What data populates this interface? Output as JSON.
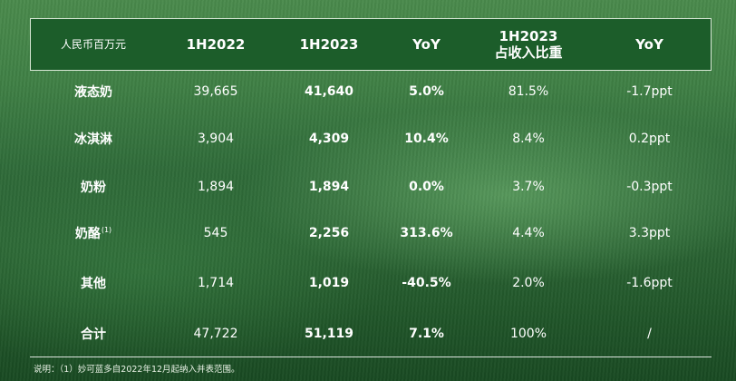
{
  "table": {
    "header": {
      "unit": "人民币百万元",
      "h1": "1H2022",
      "h2": "1H2023",
      "h3": "YoY",
      "h4_line1": "1H2023",
      "h4_line2": "占收入比重",
      "h5": "YoY"
    },
    "rows": [
      {
        "name": "液态奶",
        "sup": "",
        "v2022": "39,665",
        "v2023": "41,640",
        "yoy": "5.0%",
        "share": "81.5%",
        "share_yoy": "-1.7ppt"
      },
      {
        "name": "冰淇淋",
        "sup": "",
        "v2022": "3,904",
        "v2023": "4,309",
        "yoy": "10.4%",
        "share": "8.4%",
        "share_yoy": "0.2ppt"
      },
      {
        "name": "奶粉",
        "sup": "",
        "v2022": "1,894",
        "v2023": "1,894",
        "yoy": "0.0%",
        "share": "3.7%",
        "share_yoy": "-0.3ppt"
      },
      {
        "name": "奶酪",
        "sup": "(1)",
        "v2022": "545",
        "v2023": "2,256",
        "yoy": "313.6%",
        "share": "4.4%",
        "share_yoy": "3.3ppt"
      },
      {
        "name": "其他",
        "sup": "",
        "v2022": "1,714",
        "v2023": "1,019",
        "yoy": "-40.5%",
        "share": "2.0%",
        "share_yoy": "-1.6ppt"
      },
      {
        "name": "合计",
        "sup": "",
        "v2022": "47,722",
        "v2023": "51,119",
        "yoy": "7.1%",
        "share": "100%",
        "share_yoy": "/"
      }
    ]
  },
  "footnote": "说明：（1）妙可蓝多自2022年12月起纳入并表范围。",
  "colors": {
    "header_band": "#1c5d2a",
    "background_green": "#2f6b39",
    "text": "#ffffff"
  }
}
